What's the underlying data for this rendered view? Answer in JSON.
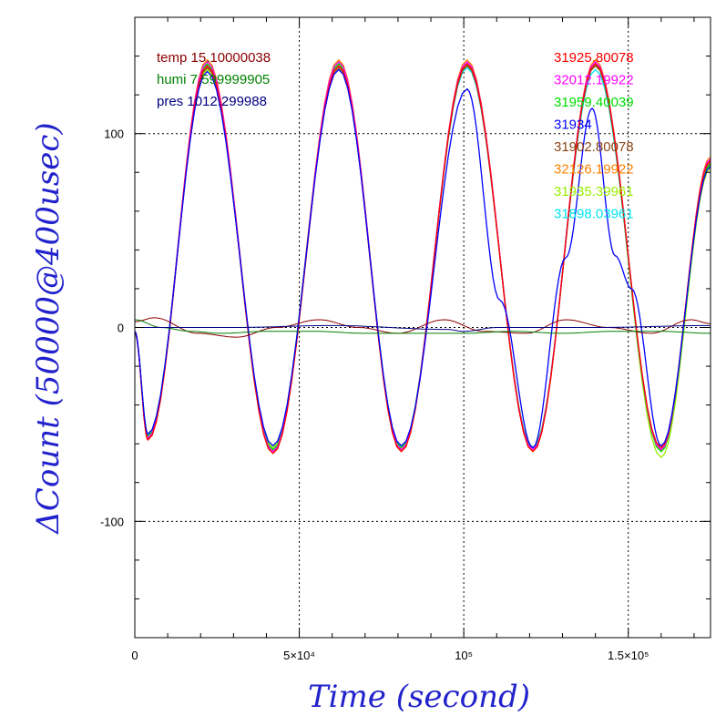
{
  "chart_data": {
    "type": "line",
    "title": "",
    "xlabel": "Time (second)",
    "ylabel": "ΔCount (50000@400usec)",
    "xlim": [
      0,
      175000
    ],
    "ylim": [
      -160,
      160
    ],
    "grid": true,
    "x_ticks": [
      {
        "value": 0,
        "label": "0"
      },
      {
        "value": 50000,
        "label": "5×10⁴"
      },
      {
        "value": 100000,
        "label": "10⁵"
      },
      {
        "value": 150000,
        "label": "1.5×10⁵"
      }
    ],
    "y_ticks": [
      {
        "value": 100,
        "label": "100"
      },
      {
        "value": 0,
        "label": "0"
      },
      {
        "value": -100,
        "label": "-100"
      }
    ],
    "legend_left": [
      {
        "name": "temp",
        "value": "15.10000038",
        "color": "#8b0000"
      },
      {
        "name": "humi",
        "value": "7.599999905",
        "color": "#008000"
      },
      {
        "name": "pres",
        "value": "1012.299988",
        "color": "#000080"
      }
    ],
    "legend_right": [
      {
        "value": "31925.80078",
        "color": "#ff0000"
      },
      {
        "value": "32012.19922",
        "color": "#ff00ff"
      },
      {
        "value": "31959.40039",
        "color": "#00dd00"
      },
      {
        "value": "31934",
        "color": "#0000ff"
      },
      {
        "value": "31902.80078",
        "color": "#8b4513"
      },
      {
        "value": "32126.19922",
        "color": "#ff8000"
      },
      {
        "value": "31935.39961",
        "color": "#99ee00"
      },
      {
        "value": "31898.03961",
        "color": "#00e5ee"
      }
    ],
    "signal_series": [
      {
        "color": "#99ee00",
        "values": [
          [
            0,
            -2
          ],
          [
            4000,
            -55
          ],
          [
            22000,
            133
          ],
          [
            42000,
            -62
          ],
          [
            62000,
            137
          ],
          [
            81000,
            -63
          ],
          [
            101000,
            135
          ],
          [
            121000,
            -63
          ],
          [
            140000,
            136
          ],
          [
            160000,
            -67
          ],
          [
            175000,
            82
          ]
        ]
      },
      {
        "color": "#00e5ee",
        "values": [
          [
            0,
            -3
          ],
          [
            4000,
            -56
          ],
          [
            22000,
            135
          ],
          [
            42000,
            -63
          ],
          [
            62000,
            136
          ],
          [
            81000,
            -62
          ],
          [
            101000,
            134
          ],
          [
            121000,
            -62
          ],
          [
            140000,
            133
          ],
          [
            160000,
            -63
          ],
          [
            175000,
            84
          ]
        ]
      },
      {
        "color": "#ff8000",
        "values": [
          [
            0,
            -2
          ],
          [
            4000,
            -58
          ],
          [
            22000,
            138
          ],
          [
            42000,
            -64
          ],
          [
            62000,
            138
          ],
          [
            81000,
            -64
          ],
          [
            101000,
            138
          ],
          [
            121000,
            -64
          ],
          [
            140000,
            138
          ],
          [
            160000,
            -64
          ],
          [
            175000,
            88
          ]
        ]
      },
      {
        "color": "#8b4513",
        "values": [
          [
            0,
            -3
          ],
          [
            4000,
            -57
          ],
          [
            22000,
            134
          ],
          [
            42000,
            -64
          ],
          [
            62000,
            134
          ],
          [
            81000,
            -63
          ],
          [
            101000,
            135
          ],
          [
            121000,
            -63
          ],
          [
            140000,
            135
          ],
          [
            160000,
            -63
          ],
          [
            175000,
            85
          ]
        ]
      },
      {
        "color": "#00dd00",
        "values": [
          [
            0,
            -2
          ],
          [
            4000,
            -56
          ],
          [
            22000,
            136
          ],
          [
            42000,
            -63
          ],
          [
            62000,
            136
          ],
          [
            81000,
            -62
          ],
          [
            101000,
            136
          ],
          [
            121000,
            -62
          ],
          [
            140000,
            136
          ],
          [
            160000,
            -64
          ],
          [
            175000,
            84
          ]
        ]
      },
      {
        "color": "#ff00ff",
        "values": [
          [
            0,
            -2
          ],
          [
            4000,
            -57
          ],
          [
            22000,
            137
          ],
          [
            42000,
            -64
          ],
          [
            62000,
            137
          ],
          [
            81000,
            -63
          ],
          [
            101000,
            137
          ],
          [
            121000,
            -63
          ],
          [
            140000,
            137
          ],
          [
            160000,
            -63
          ],
          [
            175000,
            87
          ]
        ]
      },
      {
        "color": "#ff0000",
        "values": [
          [
            0,
            -2
          ],
          [
            4000,
            -58
          ],
          [
            22000,
            135
          ],
          [
            42000,
            -65
          ],
          [
            62000,
            135
          ],
          [
            81000,
            -64
          ],
          [
            101000,
            136
          ],
          [
            121000,
            -64
          ],
          [
            140000,
            136
          ],
          [
            160000,
            -62
          ],
          [
            175000,
            86
          ]
        ]
      },
      {
        "color": "#0000ff",
        "values": [
          [
            0,
            -2
          ],
          [
            4000,
            -55
          ],
          [
            22000,
            132
          ],
          [
            42000,
            -61
          ],
          [
            62000,
            133
          ],
          [
            81000,
            -61
          ],
          [
            101000,
            123
          ],
          [
            111000,
            14
          ],
          [
            121000,
            -62
          ],
          [
            131000,
            36
          ],
          [
            139000,
            113
          ],
          [
            146000,
            37
          ],
          [
            151000,
            20
          ],
          [
            160000,
            -61
          ],
          [
            175000,
            83
          ]
        ]
      }
    ],
    "environment_series": [
      {
        "name": "temp",
        "color": "#8b0000",
        "values": [
          [
            0,
            3
          ],
          [
            6000,
            5
          ],
          [
            19000,
            -3
          ],
          [
            31000,
            -5
          ],
          [
            43000,
            0
          ],
          [
            56000,
            4
          ],
          [
            68000,
            0
          ],
          [
            80000,
            -3
          ],
          [
            94000,
            4
          ],
          [
            106000,
            -2
          ],
          [
            119000,
            -3
          ],
          [
            131000,
            4
          ],
          [
            144000,
            0
          ],
          [
            157000,
            -3
          ],
          [
            169000,
            4
          ],
          [
            175000,
            2
          ]
        ]
      },
      {
        "name": "humi",
        "color": "#008000",
        "values": [
          [
            0,
            4
          ],
          [
            8000,
            0
          ],
          [
            17000,
            -2
          ],
          [
            26000,
            -3
          ],
          [
            40000,
            -2
          ],
          [
            55000,
            -2
          ],
          [
            70000,
            -3
          ],
          [
            85000,
            -3
          ],
          [
            100000,
            -3
          ],
          [
            115000,
            -2
          ],
          [
            130000,
            -3
          ],
          [
            145000,
            -2
          ],
          [
            160000,
            -2
          ],
          [
            175000,
            -3
          ]
        ]
      },
      {
        "name": "pres",
        "color": "#000080",
        "values": [
          [
            0,
            0
          ],
          [
            30000,
            0
          ],
          [
            60000,
            1
          ],
          [
            95000,
            -1
          ],
          [
            100000,
            -2
          ],
          [
            110000,
            0
          ],
          [
            140000,
            0
          ],
          [
            175000,
            1
          ]
        ]
      }
    ]
  }
}
